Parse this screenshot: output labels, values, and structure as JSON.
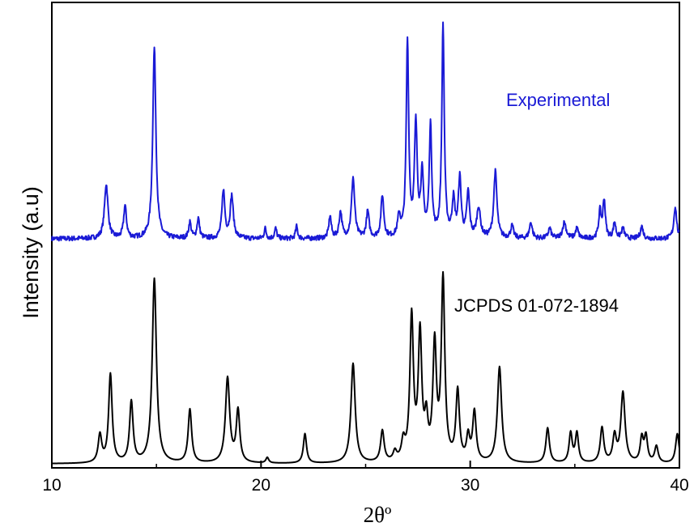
{
  "chart_data": {
    "type": "line",
    "title": "",
    "xlabel": "2θº",
    "ylabel": "Intensity (a.u)",
    "xlim": [
      10,
      40
    ],
    "xticks": [
      10,
      20,
      30,
      40
    ],
    "yticks_shown": false,
    "grid": false,
    "legend": "inline-labels",
    "series": [
      {
        "name": "Experimental",
        "color": "#1a1ad6",
        "baseline": 0.05,
        "noise": 0.012,
        "peaks": [
          {
            "x": 12.6,
            "h": 0.27,
            "w": 0.1
          },
          {
            "x": 13.5,
            "h": 0.16,
            "w": 0.08
          },
          {
            "x": 14.9,
            "h": 0.95,
            "w": 0.09
          },
          {
            "x": 16.6,
            "h": 0.08,
            "w": 0.07
          },
          {
            "x": 17.0,
            "h": 0.1,
            "w": 0.07
          },
          {
            "x": 18.2,
            "h": 0.24,
            "w": 0.08
          },
          {
            "x": 18.6,
            "h": 0.21,
            "w": 0.09
          },
          {
            "x": 20.2,
            "h": 0.05,
            "w": 0.06
          },
          {
            "x": 20.7,
            "h": 0.05,
            "w": 0.06
          },
          {
            "x": 21.7,
            "h": 0.06,
            "w": 0.06
          },
          {
            "x": 23.3,
            "h": 0.11,
            "w": 0.07
          },
          {
            "x": 23.8,
            "h": 0.13,
            "w": 0.08
          },
          {
            "x": 24.4,
            "h": 0.3,
            "w": 0.09
          },
          {
            "x": 25.1,
            "h": 0.13,
            "w": 0.08
          },
          {
            "x": 25.8,
            "h": 0.21,
            "w": 0.08
          },
          {
            "x": 26.6,
            "h": 0.1,
            "w": 0.08
          },
          {
            "x": 27.0,
            "h": 0.97,
            "w": 0.07
          },
          {
            "x": 27.4,
            "h": 0.55,
            "w": 0.08
          },
          {
            "x": 27.7,
            "h": 0.3,
            "w": 0.08
          },
          {
            "x": 28.1,
            "h": 0.55,
            "w": 0.07
          },
          {
            "x": 28.7,
            "h": 1.05,
            "w": 0.07
          },
          {
            "x": 29.2,
            "h": 0.18,
            "w": 0.08
          },
          {
            "x": 29.5,
            "h": 0.29,
            "w": 0.08
          },
          {
            "x": 29.9,
            "h": 0.22,
            "w": 0.08
          },
          {
            "x": 30.4,
            "h": 0.15,
            "w": 0.1
          },
          {
            "x": 31.2,
            "h": 0.33,
            "w": 0.09
          },
          {
            "x": 32.0,
            "h": 0.06,
            "w": 0.08
          },
          {
            "x": 32.9,
            "h": 0.08,
            "w": 0.08
          },
          {
            "x": 33.8,
            "h": 0.05,
            "w": 0.08
          },
          {
            "x": 34.5,
            "h": 0.08,
            "w": 0.1
          },
          {
            "x": 35.1,
            "h": 0.05,
            "w": 0.08
          },
          {
            "x": 36.2,
            "h": 0.13,
            "w": 0.07
          },
          {
            "x": 36.4,
            "h": 0.19,
            "w": 0.07
          },
          {
            "x": 36.9,
            "h": 0.08,
            "w": 0.07
          },
          {
            "x": 37.3,
            "h": 0.05,
            "w": 0.08
          },
          {
            "x": 38.2,
            "h": 0.06,
            "w": 0.08
          },
          {
            "x": 39.8,
            "h": 0.16,
            "w": 0.08
          }
        ]
      },
      {
        "name": "JCPDS 01-072-1894",
        "color": "#000000",
        "baseline": 0.0,
        "noise": 0.0,
        "peaks": [
          {
            "x": 12.3,
            "h": 0.15,
            "w": 0.1
          },
          {
            "x": 12.8,
            "h": 0.48,
            "w": 0.1
          },
          {
            "x": 13.8,
            "h": 0.33,
            "w": 0.1
          },
          {
            "x": 14.9,
            "h": 1.0,
            "w": 0.12
          },
          {
            "x": 16.6,
            "h": 0.29,
            "w": 0.1
          },
          {
            "x": 18.4,
            "h": 0.46,
            "w": 0.12
          },
          {
            "x": 18.9,
            "h": 0.28,
            "w": 0.1
          },
          {
            "x": 20.3,
            "h": 0.03,
            "w": 0.08
          },
          {
            "x": 22.1,
            "h": 0.16,
            "w": 0.09
          },
          {
            "x": 24.4,
            "h": 0.54,
            "w": 0.12
          },
          {
            "x": 25.8,
            "h": 0.17,
            "w": 0.1
          },
          {
            "x": 26.4,
            "h": 0.05,
            "w": 0.1
          },
          {
            "x": 26.8,
            "h": 0.1,
            "w": 0.1
          },
          {
            "x": 27.2,
            "h": 0.78,
            "w": 0.1
          },
          {
            "x": 27.6,
            "h": 0.68,
            "w": 0.1
          },
          {
            "x": 27.9,
            "h": 0.2,
            "w": 0.09
          },
          {
            "x": 28.3,
            "h": 0.62,
            "w": 0.1
          },
          {
            "x": 28.7,
            "h": 0.98,
            "w": 0.1
          },
          {
            "x": 29.4,
            "h": 0.38,
            "w": 0.1
          },
          {
            "x": 29.9,
            "h": 0.13,
            "w": 0.09
          },
          {
            "x": 30.2,
            "h": 0.27,
            "w": 0.1
          },
          {
            "x": 31.4,
            "h": 0.52,
            "w": 0.12
          },
          {
            "x": 33.7,
            "h": 0.19,
            "w": 0.1
          },
          {
            "x": 34.8,
            "h": 0.16,
            "w": 0.09
          },
          {
            "x": 35.1,
            "h": 0.16,
            "w": 0.09
          },
          {
            "x": 36.3,
            "h": 0.19,
            "w": 0.1
          },
          {
            "x": 36.9,
            "h": 0.14,
            "w": 0.1
          },
          {
            "x": 37.3,
            "h": 0.38,
            "w": 0.12
          },
          {
            "x": 38.2,
            "h": 0.13,
            "w": 0.09
          },
          {
            "x": 38.4,
            "h": 0.14,
            "w": 0.09
          },
          {
            "x": 38.9,
            "h": 0.09,
            "w": 0.1
          },
          {
            "x": 39.9,
            "h": 0.16,
            "w": 0.1
          }
        ]
      }
    ]
  }
}
